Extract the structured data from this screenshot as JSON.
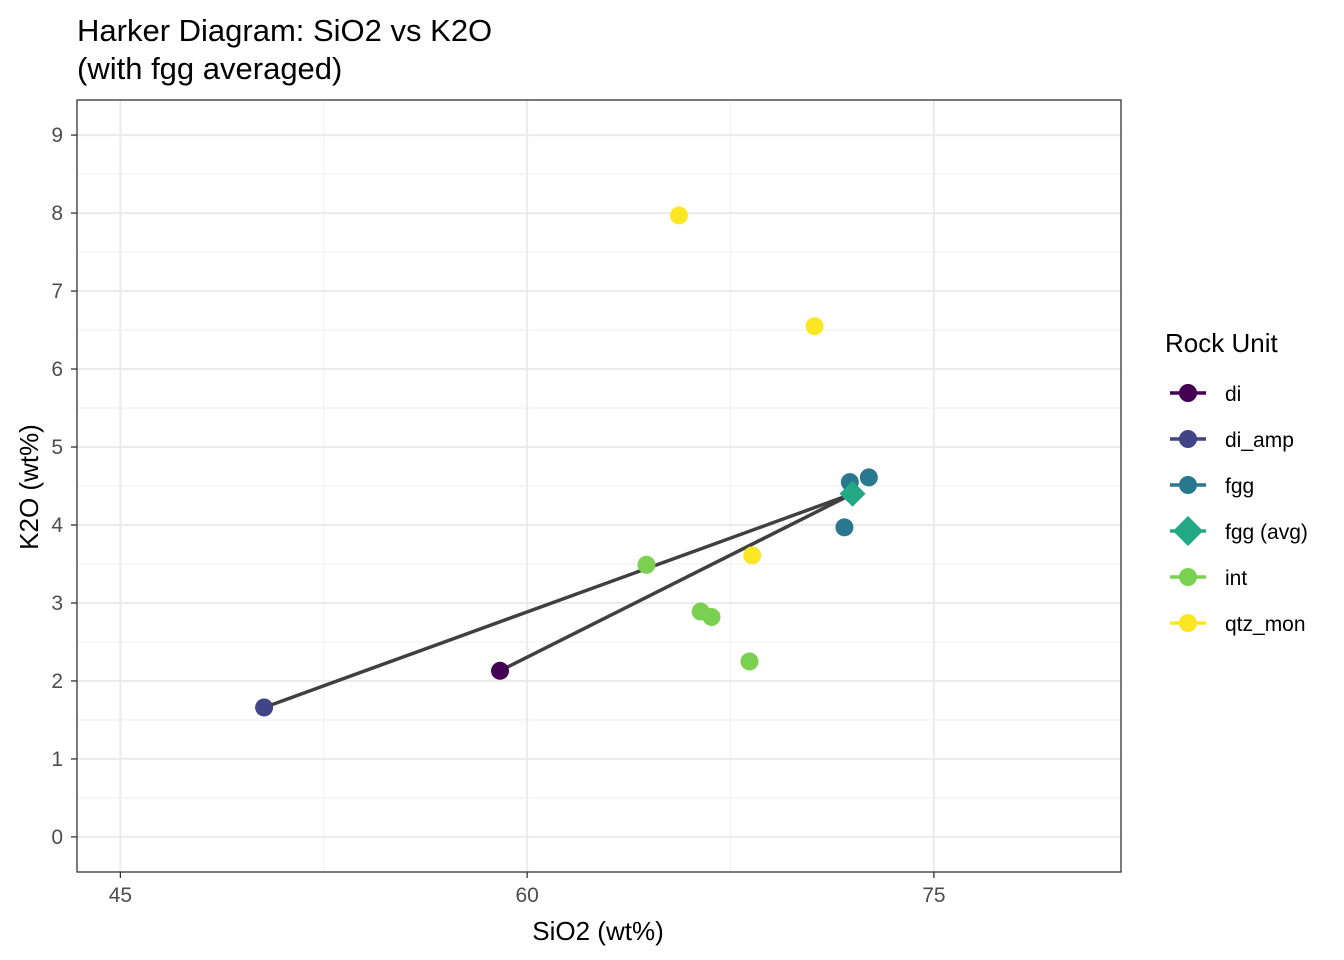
{
  "chart_data": {
    "type": "scatter",
    "title_lines": [
      "Harker Diagram: SiO2 vs K2O",
      "(with fgg averaged)"
    ],
    "xlabel": "SiO2 (wt%)",
    "ylabel": "K2O (wt%)",
    "xlim": [
      43.4,
      81.9
    ],
    "ylim": [
      -0.45,
      9.45
    ],
    "x_ticks": [
      45,
      60,
      75
    ],
    "x_minor_ticks": [
      52.5,
      67.5
    ],
    "y_ticks": [
      0,
      1,
      2,
      3,
      4,
      5,
      6,
      7,
      8,
      9
    ],
    "grid": true,
    "legend": {
      "title": "Rock Unit",
      "position": "right",
      "entries": [
        {
          "label": "di",
          "color": "#440154",
          "shape": "circle"
        },
        {
          "label": "di_amp",
          "color": "#414487",
          "shape": "circle"
        },
        {
          "label": "fgg",
          "color": "#2a788e",
          "shape": "circle"
        },
        {
          "label": "fgg (avg)",
          "color": "#22a884",
          "shape": "diamond"
        },
        {
          "label": "int",
          "color": "#7ad151",
          "shape": "circle"
        },
        {
          "label": "qtz_mon",
          "color": "#fde725",
          "shape": "circle"
        }
      ]
    },
    "series": [
      {
        "name": "di",
        "color": "#440154",
        "shape": "circle",
        "points": [
          {
            "x": 59.0,
            "y": 2.13
          }
        ]
      },
      {
        "name": "di_amp",
        "color": "#414487",
        "shape": "circle",
        "points": [
          {
            "x": 50.3,
            "y": 1.66
          }
        ]
      },
      {
        "name": "fgg",
        "color": "#2a788e",
        "shape": "circle",
        "points": [
          {
            "x": 71.9,
            "y": 4.55
          },
          {
            "x": 72.6,
            "y": 4.61
          },
          {
            "x": 71.7,
            "y": 3.97
          }
        ]
      },
      {
        "name": "fgg (avg)",
        "color": "#22a884",
        "shape": "diamond",
        "points": [
          {
            "x": 72.0,
            "y": 4.4
          }
        ]
      },
      {
        "name": "int",
        "color": "#7ad151",
        "shape": "circle",
        "points": [
          {
            "x": 64.4,
            "y": 3.49
          },
          {
            "x": 66.4,
            "y": 2.89
          },
          {
            "x": 66.8,
            "y": 2.82
          },
          {
            "x": 68.2,
            "y": 2.25
          }
        ]
      },
      {
        "name": "qtz_mon",
        "color": "#fde725",
        "shape": "circle",
        "points": [
          {
            "x": 65.6,
            "y": 7.97
          },
          {
            "x": 70.6,
            "y": 6.55
          },
          {
            "x": 68.3,
            "y": 3.61
          }
        ]
      }
    ],
    "segments": [
      {
        "from": {
          "x": 50.3,
          "y": 1.66
        },
        "to": {
          "x": 72.0,
          "y": 4.4
        }
      },
      {
        "from": {
          "x": 59.0,
          "y": 2.13
        },
        "to": {
          "x": 72.0,
          "y": 4.4
        }
      }
    ],
    "line_color": "#404040"
  }
}
